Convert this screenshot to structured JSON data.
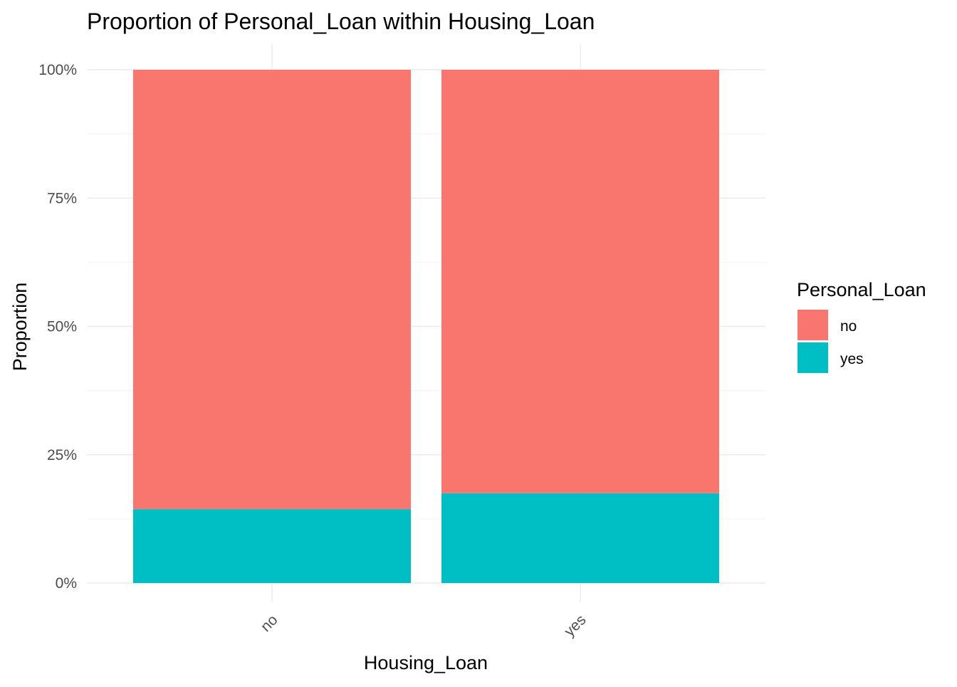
{
  "chart_data": {
    "type": "bar",
    "stacked": "fill",
    "title": "Proportion of Personal_Loan within Housing_Loan",
    "xlabel": "Housing_Loan",
    "ylabel": "Proportion",
    "categories": [
      "no",
      "yes"
    ],
    "ylim": [
      0,
      1
    ],
    "y_ticks": [
      {
        "value": 0,
        "label": "0%"
      },
      {
        "value": 0.25,
        "label": "25%"
      },
      {
        "value": 0.5,
        "label": "50%"
      },
      {
        "value": 0.75,
        "label": "75%"
      },
      {
        "value": 1,
        "label": "100%"
      }
    ],
    "series": [
      {
        "name": "yes",
        "color": "#00BFC4",
        "values": [
          0.144,
          0.175
        ]
      },
      {
        "name": "no",
        "color": "#F8766D",
        "values": [
          0.856,
          0.825
        ]
      }
    ],
    "legend": {
      "title": "Personal_Loan",
      "position": "right",
      "entries": [
        {
          "label": "no",
          "color": "#F8766D"
        },
        {
          "label": "yes",
          "color": "#00BFC4"
        }
      ]
    },
    "grid": true,
    "x_tick_rotation": 45
  }
}
